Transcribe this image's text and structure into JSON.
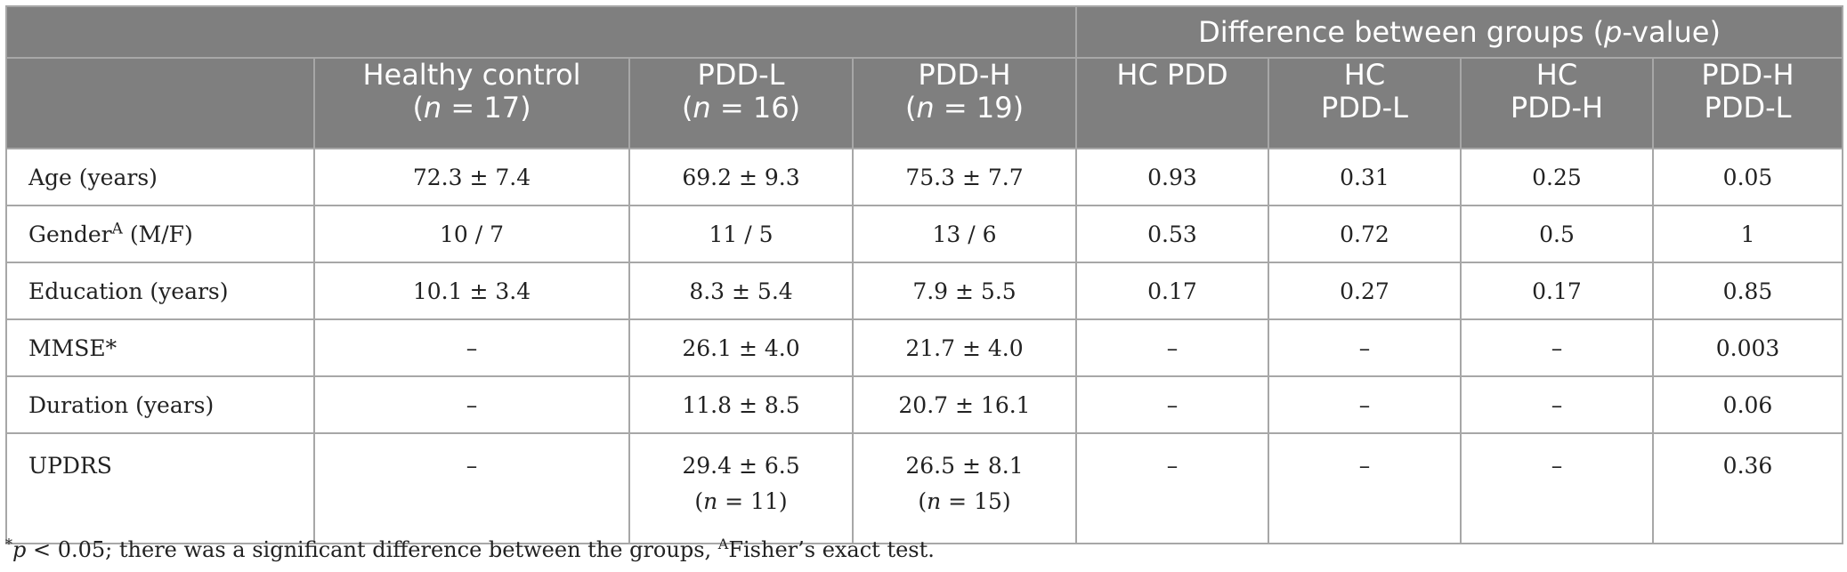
{
  "header": {
    "group_title": "Difference between groups (p-value)",
    "columns": [
      {
        "line1": "",
        "line2": ""
      },
      {
        "line1": "Healthy control",
        "line2": "(n = 17)"
      },
      {
        "line1": "PDD-L",
        "line2": "(n = 16)"
      },
      {
        "line1": "PDD-H",
        "line2": "(n = 19)"
      },
      {
        "line1": "HC PDD",
        "line2": ""
      },
      {
        "line1": "HC",
        "line2": "PDD-L"
      },
      {
        "line1": "HC",
        "line2": "PDD-H"
      },
      {
        "line1": "PDD-H",
        "line2": "PDD-L"
      }
    ]
  },
  "rows": [
    {
      "label": "Age (years)",
      "label_sup": "",
      "label_suffix": "",
      "hc": "72.3 ± 7.4",
      "pddl": "69.2 ± 9.3",
      "pddh": "75.3 ± 7.7",
      "p_hc_pdd": "0.93",
      "p_hc_pddl": "0.31",
      "p_hc_pddh": "0.25",
      "p_pddh_pddl": "0.05",
      "pddl_sub": "",
      "pddh_sub": ""
    },
    {
      "label": "Gender",
      "label_sup": "A",
      "label_suffix": " (M/F)",
      "hc": "10 / 7",
      "pddl": "11 / 5",
      "pddh": "13 / 6",
      "p_hc_pdd": "0.53",
      "p_hc_pddl": "0.72",
      "p_hc_pddh": "0.5",
      "p_pddh_pddl": "1",
      "pddl_sub": "",
      "pddh_sub": ""
    },
    {
      "label": "Education (years)",
      "label_sup": "",
      "label_suffix": "",
      "hc": "10.1 ± 3.4",
      "pddl": "8.3 ± 5.4",
      "pddh": "7.9 ± 5.5",
      "p_hc_pdd": "0.17",
      "p_hc_pddl": "0.27",
      "p_hc_pddh": "0.17",
      "p_pddh_pddl": "0.85",
      "pddl_sub": "",
      "pddh_sub": ""
    },
    {
      "label": "MMSE*",
      "label_sup": "",
      "label_suffix": "",
      "hc": "–",
      "pddl": "26.1 ± 4.0",
      "pddh": "21.7 ± 4.0",
      "p_hc_pdd": "–",
      "p_hc_pddl": "–",
      "p_hc_pddh": "–",
      "p_pddh_pddl": "0.003",
      "pddl_sub": "",
      "pddh_sub": ""
    },
    {
      "label": "Duration (years)",
      "label_sup": "",
      "label_suffix": "",
      "hc": "–",
      "pddl": "11.8 ± 8.5",
      "pddh": "20.7 ± 16.1",
      "p_hc_pdd": "–",
      "p_hc_pddl": "–",
      "p_hc_pddh": "–",
      "p_pddh_pddl": "0.06",
      "pddl_sub": "",
      "pddh_sub": ""
    },
    {
      "label": "UPDRS",
      "label_sup": "",
      "label_suffix": "",
      "hc": "–",
      "pddl": "29.4 ± 6.5",
      "pddh": "26.5 ± 8.1",
      "p_hc_pdd": "–",
      "p_hc_pddl": "–",
      "p_hc_pddh": "–",
      "p_pddh_pddl": "0.36",
      "pddl_sub": "(n = 11)",
      "pddh_sub": "(n = 15)"
    }
  ],
  "footnote": {
    "star": "*",
    "text_a": "p < 0.05; there was a significant difference between the groups, ",
    "sup_a": "A",
    "text_b": "Fisher’s exact test."
  }
}
